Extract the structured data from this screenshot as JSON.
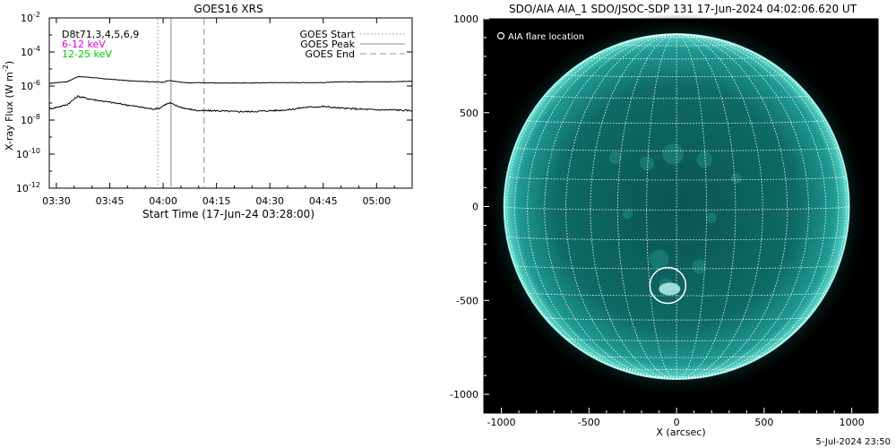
{
  "footer_timestamp": "5-Jul-2024 23:50",
  "chart_data": [
    {
      "type": "line",
      "title": "GOES16 XRS",
      "xlabel": "Start Time (17-Jun-24 03:28:00)",
      "ylabel_main": "X-ray Flux (W m",
      "ylabel_exp": "-2",
      "ylabel_close": ")",
      "x_range_minutes": [
        -2,
        100
      ],
      "x_ticks": [
        {
          "label": "03:30",
          "minutes": 0
        },
        {
          "label": "03:45",
          "minutes": 15
        },
        {
          "label": "04:00",
          "minutes": 30
        },
        {
          "label": "04:15",
          "minutes": 45
        },
        {
          "label": "04:30",
          "minutes": 60
        },
        {
          "label": "04:45",
          "minutes": 75
        },
        {
          "label": "05:00",
          "minutes": 90
        }
      ],
      "y_scale": "log",
      "y_range_log": [
        -12,
        -2
      ],
      "y_ticks": [
        {
          "base": "10",
          "exp": "-2",
          "log": -2
        },
        {
          "base": "10",
          "exp": "-4",
          "log": -4
        },
        {
          "base": "10",
          "exp": "-6",
          "log": -6
        },
        {
          "base": "10",
          "exp": "-8",
          "log": -8
        },
        {
          "base": "10",
          "exp": "-10",
          "log": -10
        },
        {
          "base": "10",
          "exp": "-12",
          "log": -12
        }
      ],
      "channel_labels": [
        {
          "text": "D8t71,3,4,5,6,9",
          "color": "#000000"
        },
        {
          "text": "6-12 keV",
          "color": "#e000e0"
        },
        {
          "text": "12-25 keV",
          "color": "#00cc00"
        }
      ],
      "markers": [
        {
          "name": "GOES Start",
          "minutes": 28.5,
          "style": "dotted",
          "color": "#aaaaaa"
        },
        {
          "name": "GOES Peak",
          "minutes": 32.2,
          "style": "solid",
          "color": "#aaaaaa"
        },
        {
          "name": "GOES End",
          "minutes": 41.5,
          "style": "dashed",
          "color": "#aaaaaa"
        }
      ],
      "legend_position": "top-right",
      "series": [
        {
          "color": "#000000",
          "x_minutes": [
            -2,
            0,
            3,
            6,
            9,
            12,
            15,
            18,
            21,
            24,
            27,
            30,
            31,
            32,
            33,
            35,
            37,
            40,
            45,
            50,
            55,
            60,
            65,
            70,
            75,
            80,
            85,
            90,
            95,
            100
          ],
          "log_flux": [
            -5.85,
            -5.8,
            -5.75,
            -5.45,
            -5.48,
            -5.55,
            -5.6,
            -5.65,
            -5.7,
            -5.72,
            -5.75,
            -5.78,
            -5.7,
            -5.68,
            -5.72,
            -5.78,
            -5.82,
            -5.8,
            -5.82,
            -5.82,
            -5.82,
            -5.8,
            -5.8,
            -5.8,
            -5.8,
            -5.75,
            -5.75,
            -5.75,
            -5.75,
            -5.72
          ]
        },
        {
          "color": "#000000",
          "x_minutes": [
            -2,
            0,
            3,
            6,
            9,
            12,
            15,
            18,
            21,
            24,
            27,
            29,
            30,
            31,
            32,
            33,
            35,
            37,
            40,
            45,
            50,
            55,
            60,
            65,
            70,
            75,
            80,
            85,
            90,
            95,
            100
          ],
          "log_flux": [
            -7.35,
            -7.25,
            -7.1,
            -6.6,
            -6.75,
            -6.85,
            -6.95,
            -7.05,
            -7.15,
            -7.25,
            -7.35,
            -7.3,
            -7.15,
            -7.05,
            -7.0,
            -7.1,
            -7.25,
            -7.35,
            -7.45,
            -7.45,
            -7.5,
            -7.5,
            -7.45,
            -7.4,
            -7.25,
            -7.2,
            -7.3,
            -7.35,
            -7.4,
            -7.4,
            -7.45
          ]
        }
      ]
    },
    {
      "type": "scatter",
      "title": "SDO/AIA AIA_1 SDO/JSOC-SDP 131 17-Jun-2024 04:02:06.620 UT",
      "xlabel": "X (arcsec)",
      "ylabel": "",
      "xlim": [
        -1100,
        1150
      ],
      "ylim": [
        -1100,
        1000
      ],
      "x_ticks": [
        {
          "label": "-1000",
          "value": -1000
        },
        {
          "label": "-500",
          "value": -500
        },
        {
          "label": "0",
          "value": 0
        },
        {
          "label": "500",
          "value": 500
        },
        {
          "label": "1000",
          "value": 1000
        }
      ],
      "y_ticks": [
        {
          "label": "1000",
          "value": 1000
        },
        {
          "label": "500",
          "value": 500
        },
        {
          "label": "0",
          "value": 0
        },
        {
          "label": "-500",
          "value": -500
        },
        {
          "label": "-1000",
          "value": -1000
        }
      ],
      "solar_radius_arcsec": 950,
      "legend_text": "AIA flare location",
      "flare_location": {
        "x": -50,
        "y": -420
      },
      "grid_color": "#ffffff",
      "disk_color": "#0f6e6a",
      "limb_color": "#8ef0e4"
    }
  ]
}
